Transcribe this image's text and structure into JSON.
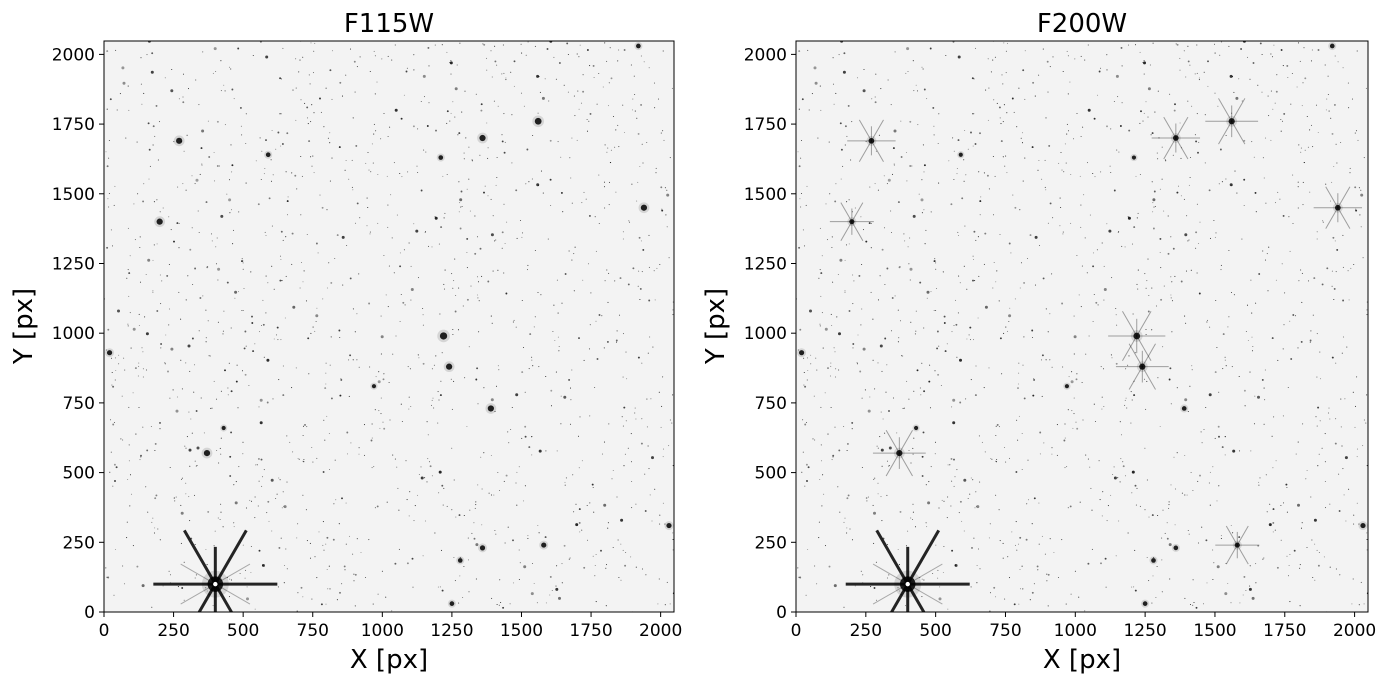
{
  "chart_data": [
    {
      "type": "heatmap",
      "title": "F115W",
      "xlabel": "X [px]",
      "ylabel": "Y [px]",
      "xlim": [
        0,
        2048
      ],
      "ylim": [
        0,
        2048
      ],
      "xticks": [
        0,
        250,
        500,
        750,
        1000,
        1250,
        1500,
        1750,
        2000
      ],
      "yticks": [
        0,
        250,
        500,
        750,
        1000,
        1250,
        1500,
        1750,
        2000
      ],
      "colormap": "greyscale inverted (dark = bright source)",
      "bright_stars": [
        {
          "x": 400,
          "y": 100,
          "m": 3.0,
          "spikes": true
        },
        {
          "x": 1220,
          "y": 990,
          "m": 1.4
        },
        {
          "x": 1240,
          "y": 880,
          "m": 1.2
        },
        {
          "x": 1390,
          "y": 730,
          "m": 1.2
        },
        {
          "x": 370,
          "y": 570,
          "m": 1.2
        },
        {
          "x": 270,
          "y": 1690,
          "m": 1.2
        },
        {
          "x": 1360,
          "y": 1700,
          "m": 1.2
        },
        {
          "x": 1560,
          "y": 1760,
          "m": 1.3
        },
        {
          "x": 200,
          "y": 1400,
          "m": 1.2
        },
        {
          "x": 1940,
          "y": 1450,
          "m": 1.2
        },
        {
          "x": 1580,
          "y": 240,
          "m": 1.0
        },
        {
          "x": 1360,
          "y": 230,
          "m": 1.0
        },
        {
          "x": 2030,
          "y": 310,
          "m": 1.0
        },
        {
          "x": 1280,
          "y": 185,
          "m": 0.9
        },
        {
          "x": 1250,
          "y": 30,
          "m": 0.9
        },
        {
          "x": 20,
          "y": 930,
          "m": 1.0
        },
        {
          "x": 1210,
          "y": 1630,
          "m": 0.9
        },
        {
          "x": 970,
          "y": 810,
          "m": 0.8
        },
        {
          "x": 430,
          "y": 660,
          "m": 0.8
        },
        {
          "x": 590,
          "y": 1640,
          "m": 0.9
        },
        {
          "x": 1920,
          "y": 2030,
          "m": 0.9
        }
      ]
    },
    {
      "type": "heatmap",
      "title": "F200W",
      "xlabel": "X [px]",
      "ylabel": "Y [px]",
      "xlim": [
        0,
        2048
      ],
      "ylim": [
        0,
        2048
      ],
      "xticks": [
        0,
        250,
        500,
        750,
        1000,
        1250,
        1500,
        1750,
        2000
      ],
      "yticks": [
        0,
        250,
        500,
        750,
        1000,
        1250,
        1500,
        1750,
        2000
      ],
      "colormap": "greyscale inverted (dark = bright source)",
      "bright_stars": [
        {
          "x": 400,
          "y": 100,
          "m": 3.0,
          "spikes": true
        },
        {
          "x": 1220,
          "y": 990,
          "m": 1.3,
          "spikes": true
        },
        {
          "x": 1240,
          "y": 880,
          "m": 1.2,
          "spikes": true
        },
        {
          "x": 1390,
          "y": 730,
          "m": 0.9
        },
        {
          "x": 370,
          "y": 570,
          "m": 1.2,
          "spikes": true
        },
        {
          "x": 270,
          "y": 1690,
          "m": 1.1,
          "spikes": true
        },
        {
          "x": 1360,
          "y": 1700,
          "m": 1.1,
          "spikes": true
        },
        {
          "x": 1560,
          "y": 1760,
          "m": 1.2,
          "spikes": true
        },
        {
          "x": 200,
          "y": 1400,
          "m": 1.0,
          "spikes": true
        },
        {
          "x": 1940,
          "y": 1450,
          "m": 1.1,
          "spikes": true
        },
        {
          "x": 1580,
          "y": 240,
          "m": 1.0,
          "spikes": true
        },
        {
          "x": 1360,
          "y": 230,
          "m": 0.9
        },
        {
          "x": 2030,
          "y": 310,
          "m": 1.0
        },
        {
          "x": 1280,
          "y": 185,
          "m": 0.9
        },
        {
          "x": 1250,
          "y": 30,
          "m": 0.9
        },
        {
          "x": 20,
          "y": 930,
          "m": 1.0
        },
        {
          "x": 1210,
          "y": 1630,
          "m": 0.8
        },
        {
          "x": 970,
          "y": 810,
          "m": 0.8
        },
        {
          "x": 430,
          "y": 660,
          "m": 0.8
        },
        {
          "x": 590,
          "y": 1640,
          "m": 0.8
        },
        {
          "x": 1920,
          "y": 2030,
          "m": 0.9
        }
      ]
    }
  ],
  "colors": {
    "background": "#f3f3f3",
    "star": "#000000",
    "frame": "#000000"
  }
}
